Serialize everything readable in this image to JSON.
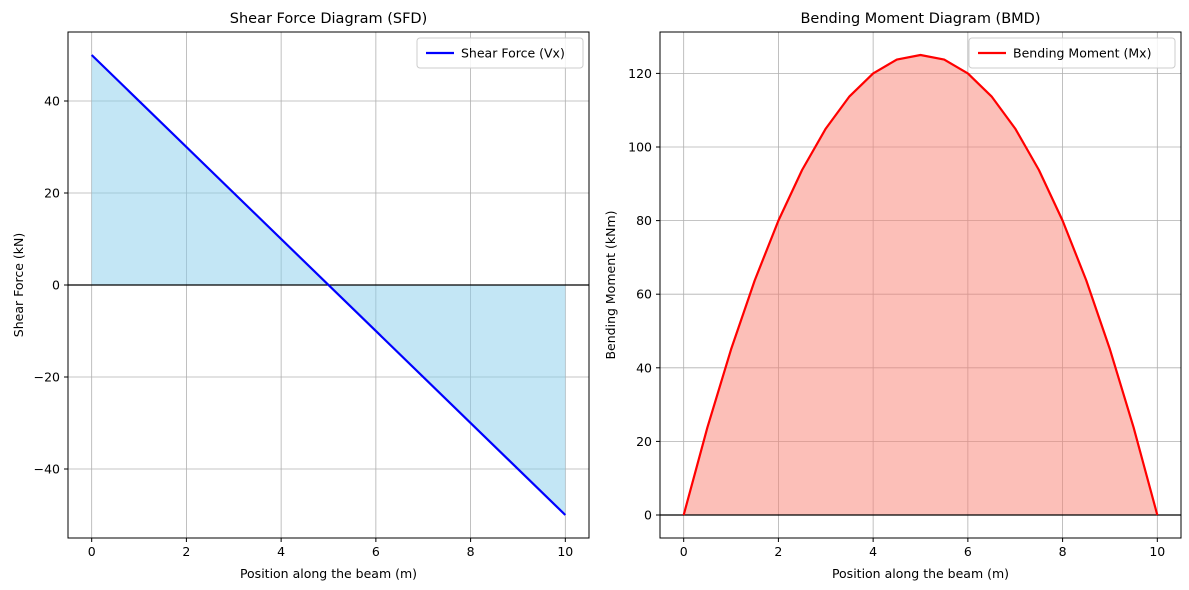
{
  "chart_data": [
    {
      "type": "area",
      "title": "Shear Force Diagram (SFD)",
      "xlabel": "Position along the beam (m)",
      "ylabel": "Shear Force (kN)",
      "xlim": [
        -0.5,
        10.5
      ],
      "ylim": [
        -55,
        55
      ],
      "xticks": [
        0,
        2,
        4,
        6,
        8,
        10
      ],
      "yticks": [
        -40,
        -20,
        0,
        20,
        40
      ],
      "xtick_labels": [
        "0",
        "2",
        "4",
        "6",
        "8",
        "10"
      ],
      "ytick_labels": [
        "−40",
        "−20",
        "0",
        "20",
        "40"
      ],
      "grid": true,
      "legend_position": "upper right",
      "baseline": 0,
      "series": [
        {
          "name": "Shear Force (Vx)",
          "color": "#0000ff",
          "fill_color": "#87ceeb",
          "x": [
            0,
            10
          ],
          "y": [
            50,
            -50
          ]
        }
      ]
    },
    {
      "type": "area",
      "title": "Bending Moment Diagram (BMD)",
      "xlabel": "Position along the beam (m)",
      "ylabel": "Bending Moment (kNm)",
      "xlim": [
        -0.5,
        10.5
      ],
      "ylim": [
        -6.25,
        131.25
      ],
      "xticks": [
        0,
        2,
        4,
        6,
        8,
        10
      ],
      "yticks": [
        0,
        20,
        40,
        60,
        80,
        100,
        120
      ],
      "xtick_labels": [
        "0",
        "2",
        "4",
        "6",
        "8",
        "10"
      ],
      "ytick_labels": [
        "0",
        "20",
        "40",
        "60",
        "80",
        "100",
        "120"
      ],
      "grid": true,
      "legend_position": "upper right",
      "baseline": 0,
      "series": [
        {
          "name": "Bending Moment (Mx)",
          "color": "#ff0000",
          "fill_color": "#fa8072",
          "x": [
            0,
            0.5,
            1,
            1.5,
            2,
            2.5,
            3,
            3.5,
            4,
            4.5,
            5,
            5.5,
            6,
            6.5,
            7,
            7.5,
            8,
            8.5,
            9,
            9.5,
            10
          ],
          "y": [
            0,
            23.75,
            45,
            63.75,
            80,
            93.75,
            105,
            113.75,
            120,
            123.75,
            125,
            123.75,
            120,
            113.75,
            105,
            93.75,
            80,
            63.75,
            45,
            23.75,
            0
          ]
        }
      ]
    }
  ]
}
